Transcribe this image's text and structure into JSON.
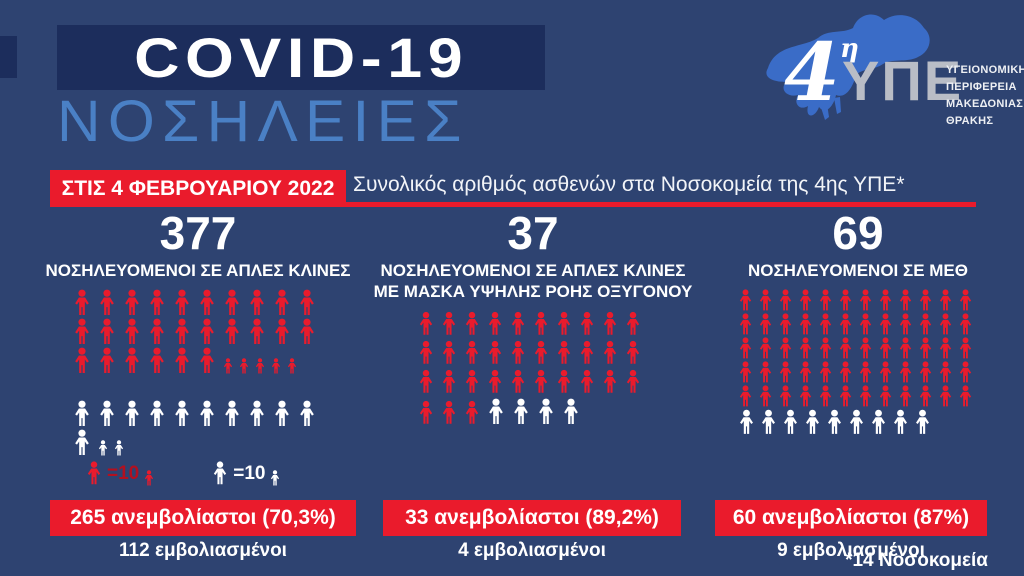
{
  "header": {
    "title": "COVID-19",
    "subtitle": "ΝΟΣΗΛΕΙΕΣ",
    "date_badge": "ΣΤΙΣ 4 ΦΕΒΡΟΥΑΡΙΟΥ 2022",
    "total_line": "Συνολικός αριθμός ασθενών στα Νοσοκομεία της 4ης ΥΠΕ*"
  },
  "logo": {
    "number": "4",
    "eta": "η",
    "org_short": "ΥΠΕ",
    "org_lines": "ΥΓΕΙΟΝΟΜΙΚΗ\nΠΕΡΙΦΕΡΕΙΑ\nΜΑΚΕΔΟΝΙΑΣ\nΘΡΑΚΗΣ"
  },
  "legend": {
    "red_label": "=10",
    "white_label": "=10"
  },
  "columns": [
    {
      "value": "377",
      "label": "ΝΟΣΗΛΕΥΟΜΕΝΟΙ ΣΕ ΑΠΛΕΣ ΚΛΙΝΕΣ",
      "unvaccinated_banner": "265 ανεμβολίαστοι (70,3%)",
      "vaccinated_label": "112 εμβολιασμένοι",
      "rows": [
        {
          "segments": [
            {
              "color": "red",
              "size": "lg",
              "count": 10
            }
          ]
        },
        {
          "segments": [
            {
              "color": "red",
              "size": "lg",
              "count": 10
            }
          ]
        },
        {
          "segments": [
            {
              "color": "red",
              "size": "lg",
              "count": 6
            },
            {
              "color": "red",
              "size": "sm",
              "count": 5
            }
          ]
        },
        {
          "gap": true,
          "segments": [
            {
              "color": "white",
              "size": "lg",
              "count": 10
            }
          ]
        },
        {
          "segments": [
            {
              "color": "white",
              "size": "lg",
              "count": 1
            },
            {
              "color": "white",
              "size": "sm",
              "count": 2
            }
          ]
        }
      ]
    },
    {
      "value": "37",
      "label": "ΝΟΣΗΛΕΥΟΜΕΝΟΙ ΣΕ ΑΠΛΕΣ ΚΛΙΝΕΣ\nΜΕ ΜΑΣΚΑ ΥΨΗΛΗΣ ΡΟΗΣ ΟΞΥΓΟΝΟΥ",
      "unvaccinated_banner": "33 ανεμβολίαστοι (89,2%)",
      "vaccinated_label": "4 εμβολιασμένοι",
      "rows": [
        {
          "segments": [
            {
              "color": "red",
              "size": "lg",
              "count": 10
            }
          ]
        },
        {
          "segments": [
            {
              "color": "red",
              "size": "lg",
              "count": 10
            }
          ]
        },
        {
          "segments": [
            {
              "color": "red",
              "size": "lg",
              "count": 10
            }
          ]
        },
        {
          "segments": [
            {
              "color": "red",
              "size": "lg",
              "count": 3
            },
            {
              "color": "white",
              "size": "lg",
              "count": 4
            }
          ]
        }
      ]
    },
    {
      "value": "69",
      "label": "ΝΟΣΗΛΕΥΟΜΕΝΟΙ ΣΕ ΜΕΘ",
      "unvaccinated_banner": "60 ανεμβολίαστοι (87%)",
      "vaccinated_label": "9 εμβολιασμένοι",
      "rows": [
        {
          "segments": [
            {
              "color": "red",
              "size": "lg",
              "count": 12
            }
          ]
        },
        {
          "segments": [
            {
              "color": "red",
              "size": "lg",
              "count": 12
            }
          ]
        },
        {
          "segments": [
            {
              "color": "red",
              "size": "lg",
              "count": 12
            }
          ]
        },
        {
          "segments": [
            {
              "color": "red",
              "size": "lg",
              "count": 12
            }
          ]
        },
        {
          "segments": [
            {
              "color": "red",
              "size": "lg",
              "count": 12
            }
          ]
        },
        {
          "segments": [
            {
              "color": "white",
              "size": "lg",
              "count": 9
            }
          ]
        }
      ]
    }
  ],
  "footnote": "*14 Νοσοκομεία",
  "colors": {
    "background": "#2e4371",
    "title_bar": "#1c2d5c",
    "subtitle_blue": "#4a80c5",
    "accent_red": "#ea1b2c",
    "legend_red_text": "#b3101f",
    "logo_map_blue": "#3a6cc7",
    "logo_gray": "#b9bdc6",
    "text_white": "#ffffff"
  },
  "chart_data": {
    "type": "bar",
    "title": "Συνολικός αριθμός ασθενών στα Νοσοκομεία της 4ης ΥΠΕ*",
    "date": "ΣΤΙΣ 4 ΦΕΒΡΟΥΑΡΙΟΥ 2022",
    "categories": [
      "ΝΟΣΗΛΕΥΟΜΕΝΟΙ ΣΕ ΑΠΛΕΣ ΚΛΙΝΕΣ",
      "ΝΟΣΗΛΕΥΟΜΕΝΟΙ ΣΕ ΑΠΛΕΣ ΚΛΙΝΕΣ ΜΕ ΜΑΣΚΑ ΥΨΗΛΗΣ ΡΟΗΣ ΟΞΥΓΟΝΟΥ",
      "ΝΟΣΗΛΕΥΟΜΕΝΟΙ ΣΕ ΜΕΘ"
    ],
    "totals": [
      377,
      37,
      69
    ],
    "series": [
      {
        "name": "ανεμβολίαστοι",
        "values": [
          265,
          33,
          60
        ],
        "percent_labels": [
          "70,3%",
          "89,2%",
          "87%"
        ],
        "color": "#ea1b2c"
      },
      {
        "name": "εμβολιασμένοι",
        "values": [
          112,
          4,
          9
        ],
        "color": "#ffffff"
      }
    ],
    "legend_note": "1 εικονίδιο = 10 (στήλη 1), μικρό εικονίδιο = 1",
    "note": "*14 Νοσοκομεία",
    "legend_position": "bottom-left",
    "grid": false
  }
}
